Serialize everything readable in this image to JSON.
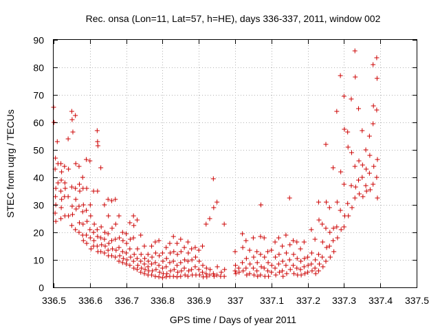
{
  "chart_data": {
    "type": "scatter",
    "title": "Rec. onsa (Lon=11, Lat=57, h=HE), days 336-337, 2011, window 002",
    "xlabel": "GPS time / Days of year 2011",
    "ylabel": "STEC from uqrg / TECUs",
    "xlim": [
      336.5,
      337.5
    ],
    "ylim": [
      0,
      90
    ],
    "x_ticks": [
      "336.5",
      "336.6",
      "336.7",
      "336.8",
      "336.9",
      "337",
      "337.1",
      "337.2",
      "337.3",
      "337.4",
      "337.5"
    ],
    "y_ticks": [
      "0",
      "10",
      "20",
      "30",
      "40",
      "50",
      "60",
      "70",
      "80",
      "90"
    ],
    "grid": true,
    "marker": "plus",
    "marker_color": "#cc0000",
    "points": [
      [
        336.5,
        65.5
      ],
      [
        336.501,
        60.0
      ],
      [
        336.505,
        47.0
      ],
      [
        336.504,
        43.0
      ],
      [
        336.506,
        36.0
      ],
      [
        336.505,
        33.0
      ],
      [
        336.506,
        30.0
      ],
      [
        336.504,
        27.0
      ],
      [
        336.506,
        24.0
      ],
      [
        336.51,
        53.0
      ],
      [
        336.512,
        45.0
      ],
      [
        336.512,
        38.0
      ],
      [
        336.52,
        45.0
      ],
      [
        336.522,
        42.0
      ],
      [
        336.521,
        39.0
      ],
      [
        336.52,
        35.0
      ],
      [
        336.522,
        32.0
      ],
      [
        336.521,
        29.0
      ],
      [
        336.52,
        25.0
      ],
      [
        336.53,
        44.0
      ],
      [
        336.531,
        38.0
      ],
      [
        336.532,
        36.0
      ],
      [
        336.53,
        33.0
      ],
      [
        336.531,
        26.0
      ],
      [
        336.54,
        54.0
      ],
      [
        336.541,
        43.0
      ],
      [
        336.54,
        33.0
      ],
      [
        336.541,
        26.0
      ],
      [
        336.55,
        64.0
      ],
      [
        336.551,
        61.0
      ],
      [
        336.553,
        56.5
      ],
      [
        336.55,
        36.5
      ],
      [
        336.551,
        29.5
      ],
      [
        336.552,
        26.5
      ],
      [
        336.55,
        22.5
      ],
      [
        336.56,
        62.5
      ],
      [
        336.561,
        45.0
      ],
      [
        336.56,
        36.0
      ],
      [
        336.561,
        32.0
      ],
      [
        336.562,
        28.5
      ],
      [
        336.56,
        21.0
      ],
      [
        336.57,
        44.0
      ],
      [
        336.571,
        37.5
      ],
      [
        336.572,
        35.0
      ],
      [
        336.57,
        29.5
      ],
      [
        336.571,
        23.5
      ],
      [
        336.57,
        20.0
      ],
      [
        336.58,
        40.0
      ],
      [
        336.581,
        36.0
      ],
      [
        336.582,
        30.0
      ],
      [
        336.58,
        27.5
      ],
      [
        336.581,
        23.0
      ],
      [
        336.58,
        19.0
      ],
      [
        336.582,
        17.0
      ],
      [
        336.59,
        46.5
      ],
      [
        336.591,
        36.0
      ],
      [
        336.59,
        28.0
      ],
      [
        336.592,
        24.0
      ],
      [
        336.59,
        19.0
      ],
      [
        336.591,
        16.0
      ],
      [
        336.6,
        46.0
      ],
      [
        336.601,
        30.0
      ],
      [
        336.602,
        26.0
      ],
      [
        336.6,
        21.0
      ],
      [
        336.601,
        18.0
      ],
      [
        336.603,
        14.0
      ],
      [
        336.61,
        35.0
      ],
      [
        336.612,
        23.0
      ],
      [
        336.61,
        20.0
      ],
      [
        336.611,
        17.0
      ],
      [
        336.61,
        15.0
      ],
      [
        336.62,
        57.0
      ],
      [
        336.621,
        53.0
      ],
      [
        336.622,
        51.5
      ],
      [
        336.621,
        35.0
      ],
      [
        336.62,
        21.0
      ],
      [
        336.621,
        18.5
      ],
      [
        336.62,
        15.0
      ],
      [
        336.622,
        13.0
      ],
      [
        336.63,
        43.5
      ],
      [
        336.631,
        22.0
      ],
      [
        336.63,
        18.0
      ],
      [
        336.632,
        15.5
      ],
      [
        336.63,
        13.0
      ],
      [
        336.64,
        30.0
      ],
      [
        336.641,
        20.0
      ],
      [
        336.64,
        17.5
      ],
      [
        336.642,
        15.0
      ],
      [
        336.64,
        12.5
      ],
      [
        336.65,
        32.0
      ],
      [
        336.651,
        26.0
      ],
      [
        336.65,
        19.5
      ],
      [
        336.652,
        16.0
      ],
      [
        336.65,
        13.5
      ],
      [
        336.651,
        11.5
      ],
      [
        336.66,
        31.5
      ],
      [
        336.661,
        21.5
      ],
      [
        336.66,
        17.0
      ],
      [
        336.662,
        14.0
      ],
      [
        336.66,
        11.5
      ],
      [
        336.67,
        32.0
      ],
      [
        336.671,
        23.0
      ],
      [
        336.67,
        17.5
      ],
      [
        336.672,
        13.5
      ],
      [
        336.67,
        11.0
      ],
      [
        336.68,
        26.0
      ],
      [
        336.681,
        18.0
      ],
      [
        336.68,
        14.5
      ],
      [
        336.682,
        11.5
      ],
      [
        336.68,
        9.5
      ],
      [
        336.69,
        20.0
      ],
      [
        336.691,
        17.0
      ],
      [
        336.69,
        13.0
      ],
      [
        336.692,
        10.5
      ],
      [
        336.69,
        9.0
      ],
      [
        336.7,
        19.5
      ],
      [
        336.701,
        16.0
      ],
      [
        336.7,
        12.5
      ],
      [
        336.702,
        10.0
      ],
      [
        336.7,
        8.5
      ],
      [
        336.71,
        23.5
      ],
      [
        336.711,
        17.5
      ],
      [
        336.71,
        14.0
      ],
      [
        336.712,
        11.0
      ],
      [
        336.71,
        8.0
      ],
      [
        336.72,
        26.0
      ],
      [
        336.721,
        22.5
      ],
      [
        336.72,
        18.0
      ],
      [
        336.722,
        12.0
      ],
      [
        336.72,
        9.5
      ],
      [
        336.721,
        7.0
      ],
      [
        336.73,
        24.5
      ],
      [
        336.731,
        14.0
      ],
      [
        336.73,
        10.5
      ],
      [
        336.732,
        8.0
      ],
      [
        336.73,
        6.5
      ],
      [
        336.74,
        19.0
      ],
      [
        336.741,
        12.0
      ],
      [
        336.74,
        9.5
      ],
      [
        336.742,
        7.0
      ],
      [
        336.74,
        5.5
      ],
      [
        336.75,
        15.0
      ],
      [
        336.751,
        10.5
      ],
      [
        336.75,
        8.5
      ],
      [
        336.752,
        6.5
      ],
      [
        336.75,
        5.0
      ],
      [
        336.76,
        12.0
      ],
      [
        336.761,
        9.5
      ],
      [
        336.76,
        7.5
      ],
      [
        336.762,
        6.0
      ],
      [
        336.76,
        4.5
      ],
      [
        336.77,
        15.0
      ],
      [
        336.771,
        11.0
      ],
      [
        336.77,
        8.5
      ],
      [
        336.772,
        6.0
      ],
      [
        336.77,
        4.5
      ],
      [
        336.78,
        16.5
      ],
      [
        336.781,
        12.5
      ],
      [
        336.78,
        9.0
      ],
      [
        336.782,
        6.5
      ],
      [
        336.78,
        4.0
      ],
      [
        336.79,
        17.0
      ],
      [
        336.791,
        11.5
      ],
      [
        336.79,
        8.0
      ],
      [
        336.792,
        5.5
      ],
      [
        336.79,
        3.8
      ],
      [
        336.8,
        12.5
      ],
      [
        336.801,
        9.5
      ],
      [
        336.8,
        7.0
      ],
      [
        336.802,
        5.0
      ],
      [
        336.8,
        3.5
      ],
      [
        336.81,
        14.5
      ],
      [
        336.811,
        10.5
      ],
      [
        336.81,
        7.5
      ],
      [
        336.812,
        5.0
      ],
      [
        336.81,
        3.8
      ],
      [
        336.82,
        16.0
      ],
      [
        336.821,
        12.5
      ],
      [
        336.82,
        9.0
      ],
      [
        336.822,
        6.0
      ],
      [
        336.82,
        4.0
      ],
      [
        336.83,
        18.5
      ],
      [
        336.831,
        13.0
      ],
      [
        336.83,
        9.5
      ],
      [
        336.832,
        6.5
      ],
      [
        336.83,
        4.0
      ],
      [
        336.84,
        16.0
      ],
      [
        336.841,
        12.0
      ],
      [
        336.84,
        8.0
      ],
      [
        336.842,
        5.5
      ],
      [
        336.84,
        3.8
      ],
      [
        336.85,
        17.5
      ],
      [
        336.851,
        13.0
      ],
      [
        336.85,
        9.0
      ],
      [
        336.852,
        6.0
      ],
      [
        336.85,
        4.0
      ],
      [
        336.86,
        14.5
      ],
      [
        336.861,
        10.0
      ],
      [
        336.86,
        7.0
      ],
      [
        336.862,
        4.5
      ],
      [
        336.87,
        16.5
      ],
      [
        336.871,
        12.5
      ],
      [
        336.87,
        9.5
      ],
      [
        336.872,
        6.0
      ],
      [
        336.87,
        4.0
      ],
      [
        336.88,
        14.0
      ],
      [
        336.881,
        10.0
      ],
      [
        336.88,
        6.5
      ],
      [
        336.882,
        4.5
      ],
      [
        336.89,
        14.5
      ],
      [
        336.891,
        11.0
      ],
      [
        336.89,
        7.5
      ],
      [
        336.892,
        4.5
      ],
      [
        336.9,
        13.5
      ],
      [
        336.901,
        9.5
      ],
      [
        336.9,
        6.5
      ],
      [
        336.902,
        4.5
      ],
      [
        336.91,
        15.0
      ],
      [
        336.911,
        8.0
      ],
      [
        336.91,
        5.5
      ],
      [
        336.912,
        3.8
      ],
      [
        336.92,
        23.0
      ],
      [
        336.921,
        7.0
      ],
      [
        336.92,
        5.0
      ],
      [
        336.922,
        3.8
      ],
      [
        336.93,
        25.0
      ],
      [
        336.931,
        6.5
      ],
      [
        336.93,
        4.5
      ],
      [
        336.94,
        39.5
      ],
      [
        336.941,
        29.0
      ],
      [
        336.94,
        5.0
      ],
      [
        336.942,
        4.0
      ],
      [
        336.95,
        31.0
      ],
      [
        336.951,
        7.5
      ],
      [
        336.95,
        4.5
      ],
      [
        336.96,
        4.0
      ],
      [
        336.962,
        5.5
      ],
      [
        336.97,
        23.0
      ],
      [
        336.971,
        6.5
      ],
      [
        336.97,
        4.0
      ],
      [
        337.0,
        13.0
      ],
      [
        337.001,
        8.0
      ],
      [
        337.0,
        6.0
      ],
      [
        337.002,
        5.0
      ],
      [
        337.01,
        7.0
      ],
      [
        337.011,
        5.5
      ],
      [
        337.02,
        19.5
      ],
      [
        337.021,
        14.5
      ],
      [
        337.02,
        9.0
      ],
      [
        337.022,
        6.0
      ],
      [
        337.03,
        17.0
      ],
      [
        337.031,
        10.5
      ],
      [
        337.03,
        7.0
      ],
      [
        337.032,
        4.5
      ],
      [
        337.04,
        13.5
      ],
      [
        337.041,
        8.5
      ],
      [
        337.04,
        5.0
      ],
      [
        337.05,
        18.0
      ],
      [
        337.051,
        11.0
      ],
      [
        337.05,
        7.0
      ],
      [
        337.052,
        4.5
      ],
      [
        337.06,
        13.0
      ],
      [
        337.061,
        9.0
      ],
      [
        337.06,
        6.0
      ],
      [
        337.062,
        4.0
      ],
      [
        337.07,
        18.5
      ],
      [
        337.071,
        30.0
      ],
      [
        337.07,
        12.0
      ],
      [
        337.072,
        7.5
      ],
      [
        337.07,
        4.5
      ],
      [
        337.08,
        18.0
      ],
      [
        337.081,
        11.0
      ],
      [
        337.08,
        7.0
      ],
      [
        337.082,
        4.0
      ],
      [
        337.09,
        13.0
      ],
      [
        337.091,
        9.0
      ],
      [
        337.09,
        6.0
      ],
      [
        337.092,
        4.0
      ],
      [
        337.1,
        13.5
      ],
      [
        337.101,
        8.0
      ],
      [
        337.1,
        5.5
      ],
      [
        337.11,
        16.5
      ],
      [
        337.111,
        11.0
      ],
      [
        337.11,
        7.0
      ],
      [
        337.112,
        4.5
      ],
      [
        337.12,
        18.0
      ],
      [
        337.121,
        12.0
      ],
      [
        337.12,
        8.5
      ],
      [
        337.122,
        5.5
      ],
      [
        337.13,
        15.0
      ],
      [
        337.131,
        9.5
      ],
      [
        337.13,
        6.0
      ],
      [
        337.132,
        4.0
      ],
      [
        337.14,
        19.0
      ],
      [
        337.141,
        12.5
      ],
      [
        337.14,
        8.0
      ],
      [
        337.142,
        5.0
      ],
      [
        337.15,
        32.5
      ],
      [
        337.151,
        15.5
      ],
      [
        337.15,
        10.0
      ],
      [
        337.152,
        6.5
      ],
      [
        337.16,
        17.0
      ],
      [
        337.161,
        12.0
      ],
      [
        337.16,
        8.0
      ],
      [
        337.162,
        5.0
      ],
      [
        337.17,
        16.5
      ],
      [
        337.171,
        10.5
      ],
      [
        337.17,
        7.0
      ],
      [
        337.172,
        4.5
      ],
      [
        337.18,
        14.0
      ],
      [
        337.181,
        9.5
      ],
      [
        337.18,
        6.5
      ],
      [
        337.182,
        4.5
      ],
      [
        337.19,
        16.5
      ],
      [
        337.191,
        10.5
      ],
      [
        337.19,
        7.5
      ],
      [
        337.192,
        5.0
      ],
      [
        337.2,
        11.0
      ],
      [
        337.201,
        8.0
      ],
      [
        337.2,
        5.5
      ],
      [
        337.21,
        21.0
      ],
      [
        337.211,
        12.5
      ],
      [
        337.21,
        8.5
      ],
      [
        337.212,
        6.0
      ],
      [
        337.22,
        17.5
      ],
      [
        337.221,
        10.0
      ],
      [
        337.22,
        7.0
      ],
      [
        337.222,
        5.0
      ],
      [
        337.23,
        31.0
      ],
      [
        337.231,
        24.5
      ],
      [
        337.23,
        12.0
      ],
      [
        337.232,
        8.5
      ],
      [
        337.23,
        6.0
      ],
      [
        337.24,
        23.0
      ],
      [
        337.241,
        16.5
      ],
      [
        337.24,
        11.0
      ],
      [
        337.242,
        7.5
      ],
      [
        337.25,
        52.0
      ],
      [
        337.251,
        31.0
      ],
      [
        337.25,
        21.5
      ],
      [
        337.252,
        14.5
      ],
      [
        337.25,
        9.5
      ],
      [
        337.26,
        29.0
      ],
      [
        337.261,
        20.0
      ],
      [
        337.26,
        15.0
      ],
      [
        337.262,
        11.0
      ],
      [
        337.27,
        43.5
      ],
      [
        337.271,
        21.5
      ],
      [
        337.27,
        17.0
      ],
      [
        337.272,
        13.0
      ],
      [
        337.28,
        64.0
      ],
      [
        337.281,
        31.0
      ],
      [
        337.28,
        22.0
      ],
      [
        337.282,
        18.0
      ],
      [
        337.29,
        77.0
      ],
      [
        337.291,
        42.0
      ],
      [
        337.29,
        28.0
      ],
      [
        337.292,
        21.0
      ],
      [
        337.3,
        69.5
      ],
      [
        337.301,
        57.5
      ],
      [
        337.3,
        37.5
      ],
      [
        337.302,
        26.0
      ],
      [
        337.3,
        22.0
      ],
      [
        337.31,
        56.5
      ],
      [
        337.311,
        51.0
      ],
      [
        337.31,
        30.5
      ],
      [
        337.312,
        26.0
      ],
      [
        337.32,
        68.5
      ],
      [
        337.321,
        49.0
      ],
      [
        337.32,
        37.0
      ],
      [
        337.322,
        29.0
      ],
      [
        337.33,
        86.0
      ],
      [
        337.331,
        76.5
      ],
      [
        337.33,
        44.0
      ],
      [
        337.332,
        36.5
      ],
      [
        337.33,
        32.5
      ],
      [
        337.34,
        65.0
      ],
      [
        337.341,
        46.0
      ],
      [
        337.34,
        39.0
      ],
      [
        337.342,
        34.0
      ],
      [
        337.35,
        57.0
      ],
      [
        337.351,
        44.5
      ],
      [
        337.35,
        40.0
      ],
      [
        337.352,
        33.0
      ],
      [
        337.36,
        50.0
      ],
      [
        337.361,
        43.0
      ],
      [
        337.36,
        37.0
      ],
      [
        337.362,
        35.0
      ],
      [
        337.37,
        55.0
      ],
      [
        337.371,
        48.0
      ],
      [
        337.37,
        41.5
      ],
      [
        337.372,
        35.5
      ],
      [
        337.38,
        81.0
      ],
      [
        337.381,
        66.0
      ],
      [
        337.38,
        59.5
      ],
      [
        337.382,
        44.0
      ],
      [
        337.38,
        37.5
      ],
      [
        337.39,
        83.5
      ],
      [
        337.391,
        76.0
      ],
      [
        337.39,
        64.5
      ],
      [
        337.392,
        46.5
      ],
      [
        337.39,
        40.0
      ],
      [
        337.392,
        32.5
      ]
    ]
  }
}
